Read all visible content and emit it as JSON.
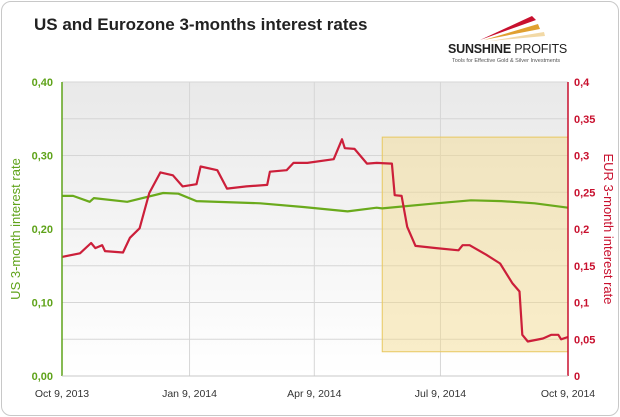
{
  "chart_data": {
    "type": "line",
    "title": "US and Eurozone 3-months interest rates",
    "xlabel": "",
    "ylabel_left": "US 3-month interest rate",
    "ylabel_right": "EUR 3-month interest rate",
    "xlim": [
      "2013-10-09",
      "2014-10-09"
    ],
    "x_ticks": [
      "Oct 9, 2013",
      "Jan 9, 2014",
      "Apr 9, 2014",
      "Jul 9, 2014",
      "Oct 9, 2014"
    ],
    "x_tick_dates": [
      "2013-10-09",
      "2014-01-09",
      "2014-04-09",
      "2014-07-09",
      "2014-10-09"
    ],
    "ylim_left": [
      0,
      0.4
    ],
    "y_ticks_left": [
      "0,00",
      "0,10",
      "0,20",
      "0,30",
      "0,40"
    ],
    "ylim_right": [
      0,
      0.4
    ],
    "y_ticks_right": [
      "0",
      "0,05",
      "0,1",
      "0,15",
      "0,2",
      "0,25",
      "0,3",
      "0,35",
      "0,4"
    ],
    "grid": true,
    "highlight_region": {
      "x": [
        "2014-05-28",
        "2014-10-09"
      ],
      "y": [
        0.033,
        0.325
      ],
      "color": "#f3d98a"
    },
    "series": [
      {
        "name": "US 3-month interest rate",
        "axis": "left",
        "color": "#6aaa1c",
        "points": [
          [
            "2013-10-09",
            0.245
          ],
          [
            "2013-10-17",
            0.245
          ],
          [
            "2013-10-29",
            0.237
          ],
          [
            "2013-11-01",
            0.242
          ],
          [
            "2013-11-25",
            0.237
          ],
          [
            "2013-12-21",
            0.249
          ],
          [
            "2014-01-01",
            0.248
          ],
          [
            "2014-01-14",
            0.238
          ],
          [
            "2014-03-01",
            0.235
          ],
          [
            "2014-04-01",
            0.23
          ],
          [
            "2014-05-03",
            0.224
          ],
          [
            "2014-05-24",
            0.229
          ],
          [
            "2014-05-28",
            0.228
          ],
          [
            "2014-07-06",
            0.235
          ],
          [
            "2014-07-31",
            0.239
          ],
          [
            "2014-08-22",
            0.238
          ],
          [
            "2014-09-15",
            0.235
          ],
          [
            "2014-10-09",
            0.229
          ]
        ]
      },
      {
        "name": "EUR 3-month interest rate",
        "axis": "right",
        "color": "#cc1f3a",
        "points": [
          [
            "2013-10-09",
            0.162
          ],
          [
            "2013-10-22",
            0.167
          ],
          [
            "2013-10-30",
            0.181
          ],
          [
            "2013-11-02",
            0.174
          ],
          [
            "2013-11-07",
            0.178
          ],
          [
            "2013-11-09",
            0.17
          ],
          [
            "2013-11-22",
            0.168
          ],
          [
            "2013-11-27",
            0.188
          ],
          [
            "2013-12-04",
            0.201
          ],
          [
            "2013-12-11",
            0.249
          ],
          [
            "2013-12-19",
            0.277
          ],
          [
            "2013-12-28",
            0.273
          ],
          [
            "2014-01-04",
            0.258
          ],
          [
            "2014-01-14",
            0.261
          ],
          [
            "2014-01-17",
            0.285
          ],
          [
            "2014-01-29",
            0.28
          ],
          [
            "2014-02-05",
            0.255
          ],
          [
            "2014-02-19",
            0.258
          ],
          [
            "2014-03-06",
            0.26
          ],
          [
            "2014-03-08",
            0.278
          ],
          [
            "2014-03-20",
            0.28
          ],
          [
            "2014-03-25",
            0.29
          ],
          [
            "2014-04-04",
            0.29
          ],
          [
            "2014-04-23",
            0.295
          ],
          [
            "2014-04-29",
            0.322
          ],
          [
            "2014-05-01",
            0.31
          ],
          [
            "2014-05-08",
            0.309
          ],
          [
            "2014-05-17",
            0.289
          ],
          [
            "2014-05-24",
            0.29
          ],
          [
            "2014-06-04",
            0.289
          ],
          [
            "2014-06-06",
            0.246
          ],
          [
            "2014-06-11",
            0.245
          ],
          [
            "2014-06-15",
            0.203
          ],
          [
            "2014-06-21",
            0.177
          ],
          [
            "2014-07-06",
            0.174
          ],
          [
            "2014-07-22",
            0.171
          ],
          [
            "2014-07-25",
            0.178
          ],
          [
            "2014-07-30",
            0.178
          ],
          [
            "2014-08-11",
            0.165
          ],
          [
            "2014-08-21",
            0.153
          ],
          [
            "2014-08-30",
            0.126
          ],
          [
            "2014-09-04",
            0.115
          ],
          [
            "2014-09-06",
            0.056
          ],
          [
            "2014-09-10",
            0.047
          ],
          [
            "2014-09-21",
            0.051
          ],
          [
            "2014-09-27",
            0.056
          ],
          [
            "2014-10-02",
            0.056
          ],
          [
            "2014-10-04",
            0.05
          ],
          [
            "2014-10-09",
            0.053
          ]
        ]
      }
    ],
    "left_axis_color": "#5fa31a",
    "right_axis_color": "#c8102e"
  },
  "logo": {
    "name_bold": "SUNSHINE",
    "name_light": " PROFITS",
    "tagline": "Tools for Effective Gold & Silver Investments"
  }
}
